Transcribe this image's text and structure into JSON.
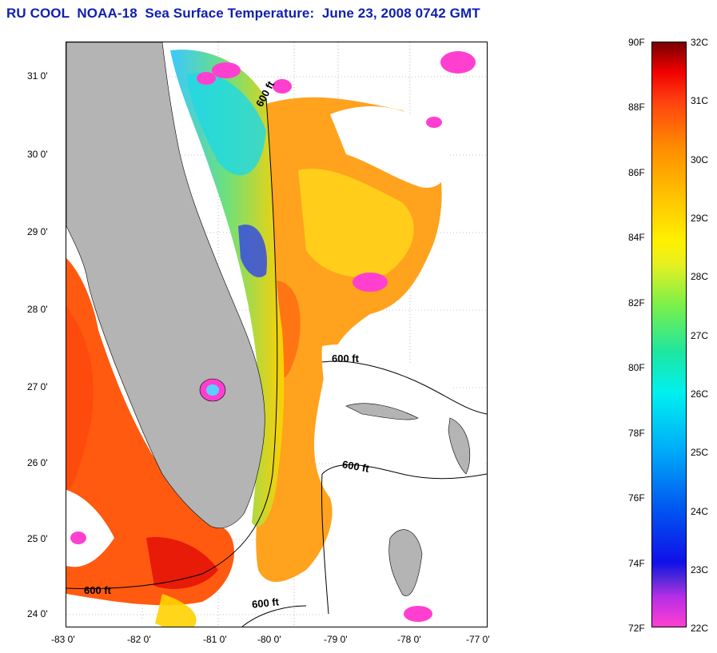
{
  "title": "RU COOL  NOAA-18  Sea Surface Temperature:  June 23, 2008 0742 GMT",
  "map": {
    "lat_labels": [
      "31 0'",
      "30 0'",
      "29 0'",
      "28 0'",
      "27 0'",
      "26 0'",
      "25 0'",
      "24 0'"
    ],
    "lon_labels": [
      "-83 0'",
      "-82 0'",
      "-81 0'",
      "-80 0'",
      "-79 0'",
      "-78 0'",
      "-77 0'"
    ],
    "isobath_labels": [
      "600 ft",
      "600 ft",
      "600 ft",
      "600 ft",
      "600 ft"
    ],
    "land_color": "#b4b4b4"
  },
  "colorbar": {
    "fahrenheit": [
      "90F",
      "88F",
      "86F",
      "84F",
      "82F",
      "80F",
      "78F",
      "76F",
      "74F",
      "72F"
    ],
    "celsius": [
      "32C",
      "31C",
      "30C",
      "29C",
      "28C",
      "27C",
      "26C",
      "25C",
      "24C",
      "23C",
      "22C"
    ]
  }
}
